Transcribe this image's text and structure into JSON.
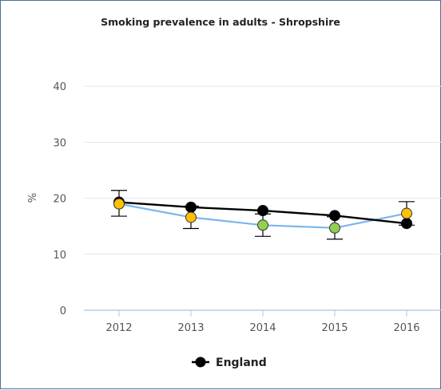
{
  "chart_data": {
    "type": "line",
    "title": "Smoking prevalence in adults - Shropshire",
    "ylabel": "%",
    "xlabel": "",
    "categories": [
      "2012",
      "2013",
      "2014",
      "2015",
      "2016"
    ],
    "ylim": [
      0,
      45
    ],
    "yticks": [
      0,
      10,
      20,
      30,
      40
    ],
    "grid": true,
    "legend_position": "bottom-center",
    "series": [
      {
        "values": [
          19.0,
          16.6,
          15.2,
          14.7,
          17.3
        ],
        "ci_low": [
          16.8,
          14.6,
          13.2,
          12.7,
          15.2
        ],
        "ci_high": [
          21.4,
          18.6,
          17.2,
          16.7,
          19.4
        ],
        "line_color": "#7cb5ec",
        "point_colors": [
          "#ffc000",
          "#ffc000",
          "#92d050",
          "#92d050",
          "#ffc000"
        ]
      },
      {
        "name": "England",
        "values": [
          19.3,
          18.4,
          17.8,
          16.9,
          15.5
        ],
        "color": "#000000"
      }
    ]
  }
}
